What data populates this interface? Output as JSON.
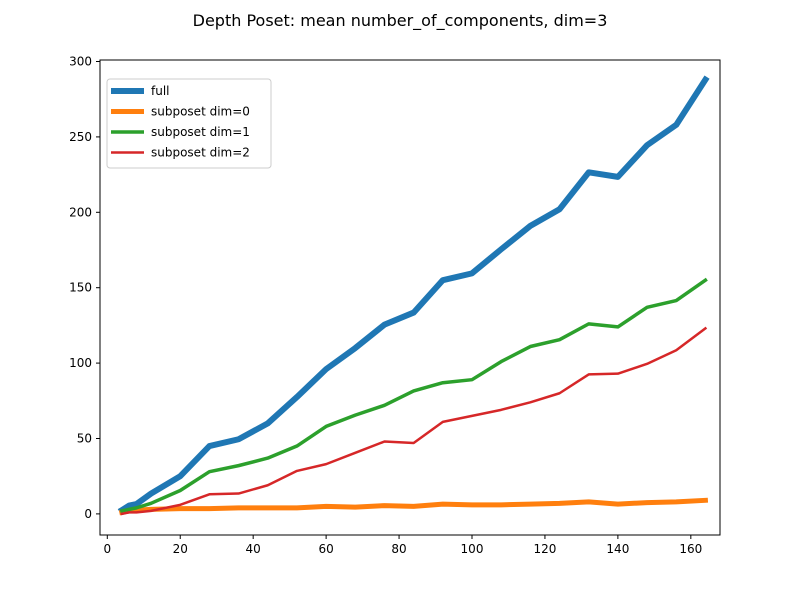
{
  "chart_data": {
    "type": "line",
    "title": "Depth Poset: mean number_of_components, dim=3",
    "xlabel": "",
    "ylabel": "",
    "xlim": [
      -2.0,
      168.0
    ],
    "ylim": [
      -14.0,
      301.0
    ],
    "xticks": [
      0,
      20,
      40,
      60,
      80,
      100,
      120,
      140,
      160
    ],
    "yticks": [
      0,
      50,
      100,
      150,
      200,
      250,
      300
    ],
    "xtick_labels": [
      "0",
      "20",
      "40",
      "60",
      "80",
      "100",
      "120",
      "140",
      "160"
    ],
    "ytick_labels": [
      "0",
      "50",
      "100",
      "150",
      "200",
      "250",
      "300"
    ],
    "grid": false,
    "legend_position": "upper left",
    "x": [
      4,
      6,
      8,
      12,
      20,
      28,
      36,
      44,
      52,
      60,
      68,
      76,
      84,
      92,
      100,
      108,
      116,
      124,
      132,
      140,
      148,
      156,
      164
    ],
    "series": [
      {
        "name": "full",
        "color": "#1f77b4",
        "line_width": 6,
        "values": [
          2.5,
          5.5,
          6.5,
          13.5,
          25,
          45,
          49.5,
          60,
          77.5,
          96,
          110,
          125.5,
          133.5,
          155,
          159.5,
          175.5,
          191,
          202,
          226.5,
          223.5,
          244.5,
          258,
          288
        ]
      },
      {
        "name": "subposet dim=0",
        "color": "#ff7f0e",
        "line_width": 5,
        "values": [
          1,
          2,
          2.5,
          3,
          3.5,
          3.5,
          4,
          4,
          4,
          5,
          4.5,
          5.5,
          5,
          6.5,
          6,
          6,
          6.5,
          7,
          8,
          6.5,
          7.5,
          8,
          9
        ]
      },
      {
        "name": "subposet dim=1",
        "color": "#2ca02c",
        "line_width": 3.5,
        "values": [
          2,
          3,
          4,
          7,
          15.5,
          28,
          32,
          37,
          45,
          58,
          65.5,
          72,
          81.5,
          87,
          89,
          101,
          111,
          115.5,
          126,
          124,
          137,
          141.5,
          155
        ]
      },
      {
        "name": "subposet dim=2",
        "color": "#d62728",
        "line_width": 2.5,
        "values": [
          0,
          1,
          1,
          2,
          6,
          13,
          13.5,
          19,
          28.5,
          33,
          40.5,
          48,
          47,
          61,
          65,
          69,
          74,
          80,
          92.5,
          93,
          99.5,
          108.5,
          123
        ]
      }
    ]
  }
}
